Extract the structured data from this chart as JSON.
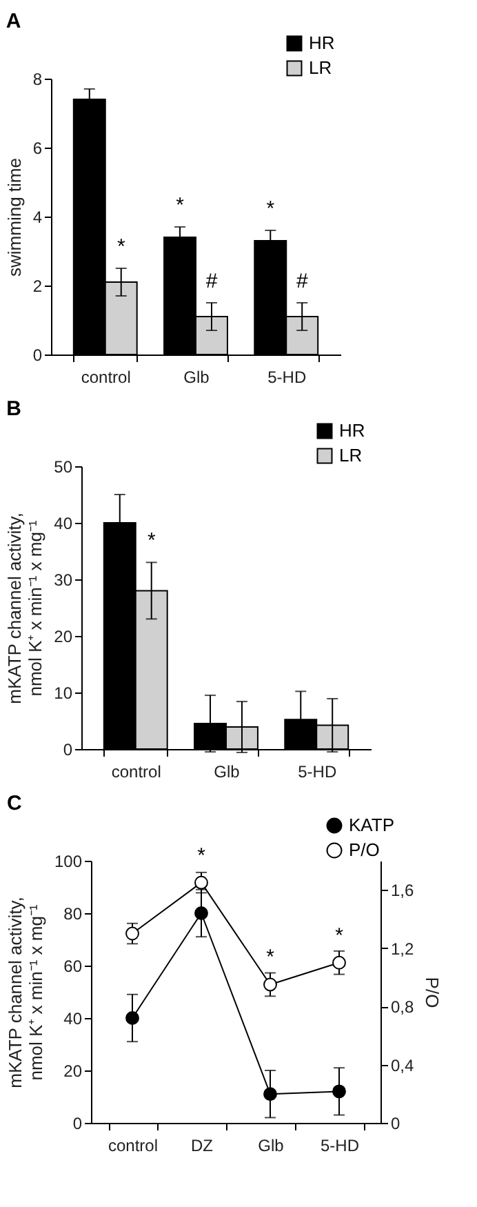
{
  "chart_data": [
    {
      "type": "bar",
      "title": "A",
      "ylabel": "swimming time",
      "categories": [
        "control",
        "Glb",
        "5-HD"
      ],
      "series": [
        {
          "name": "HR",
          "color": "#000000",
          "values": [
            7.4,
            3.4,
            3.3
          ],
          "errors": [
            0.3,
            0.3,
            0.3
          ]
        },
        {
          "name": "LR",
          "color": "#d0d0d0",
          "values": [
            2.1,
            1.1,
            1.1
          ],
          "errors": [
            0.4,
            0.4,
            0.4
          ]
        }
      ],
      "ylim": [
        0,
        8
      ],
      "yticks": [
        0,
        2,
        4,
        6,
        8
      ],
      "legend": "top right",
      "annotations": [
        {
          "text": "*",
          "x": "control",
          "y": 2.1
        },
        {
          "text": "*",
          "x": "Glb",
          "y": 3.4
        },
        {
          "text": "*",
          "x": "5-HD",
          "y": 3.3
        },
        {
          "text": "#",
          "x": "Glb",
          "y": 1.1
        },
        {
          "text": "#",
          "x": "5-HD",
          "y": 1.1
        }
      ]
    },
    {
      "type": "bar",
      "title": "B",
      "ylabel": "mKATP channel activity, nmol K⁺ x min⁻¹ x mg⁻¹",
      "categories": [
        "control",
        "Glb",
        "5-HD"
      ],
      "series": [
        {
          "name": "HR",
          "color": "#000000",
          "values": [
            40,
            4.5,
            5.2
          ],
          "errors": [
            5,
            5,
            5
          ]
        },
        {
          "name": "LR",
          "color": "#d0d0d0",
          "values": [
            28,
            3.9,
            4.2
          ],
          "errors": [
            5,
            4.5,
            4.7
          ]
        }
      ],
      "ylim": [
        0,
        50
      ],
      "yticks": [
        0,
        10,
        20,
        30,
        40,
        50
      ],
      "legend": "top right",
      "annotations": [
        {
          "text": "*",
          "x": "control",
          "y": 28
        }
      ]
    },
    {
      "type": "line",
      "title": "C",
      "ylabel": "mKATP channel activity, nmol K⁺ x min⁻¹ x mg⁻¹",
      "y2label": "P/O",
      "categories": [
        "control",
        "DZ",
        "Glb",
        "5-HD"
      ],
      "series": [
        {
          "name": "KATP",
          "color": "#000000",
          "values": [
            40,
            80,
            11,
            12
          ],
          "errors": [
            9,
            9,
            9,
            9
          ]
        },
        {
          "name": "P/O",
          "color": "#ffffff",
          "axis": "y2",
          "values": [
            1.3,
            1.65,
            0.95,
            1.1
          ],
          "errors": [
            0.07,
            0.07,
            0.08,
            0.08
          ]
        }
      ],
      "ylim": [
        0,
        100
      ],
      "yticks": [
        0,
        20,
        40,
        60,
        80,
        100
      ],
      "y2lim": [
        0,
        1.8
      ],
      "y2ticks": [
        0,
        {
          "value": 0.4,
          "label": "0,4"
        },
        {
          "value": 0.8,
          "label": "0,8"
        },
        {
          "value": 1.2,
          "label": "1,2"
        },
        {
          "value": 1.6,
          "label": "1,6"
        }
      ],
      "marker": "circle",
      "legend": "top right",
      "annotations": [
        {
          "text": "*",
          "x": "DZ",
          "y": 91.7
        },
        {
          "text": "*",
          "x": "Glb",
          "y": 52.8
        },
        {
          "text": "*",
          "x": "5-HD",
          "y": 61.1
        }
      ]
    }
  ]
}
